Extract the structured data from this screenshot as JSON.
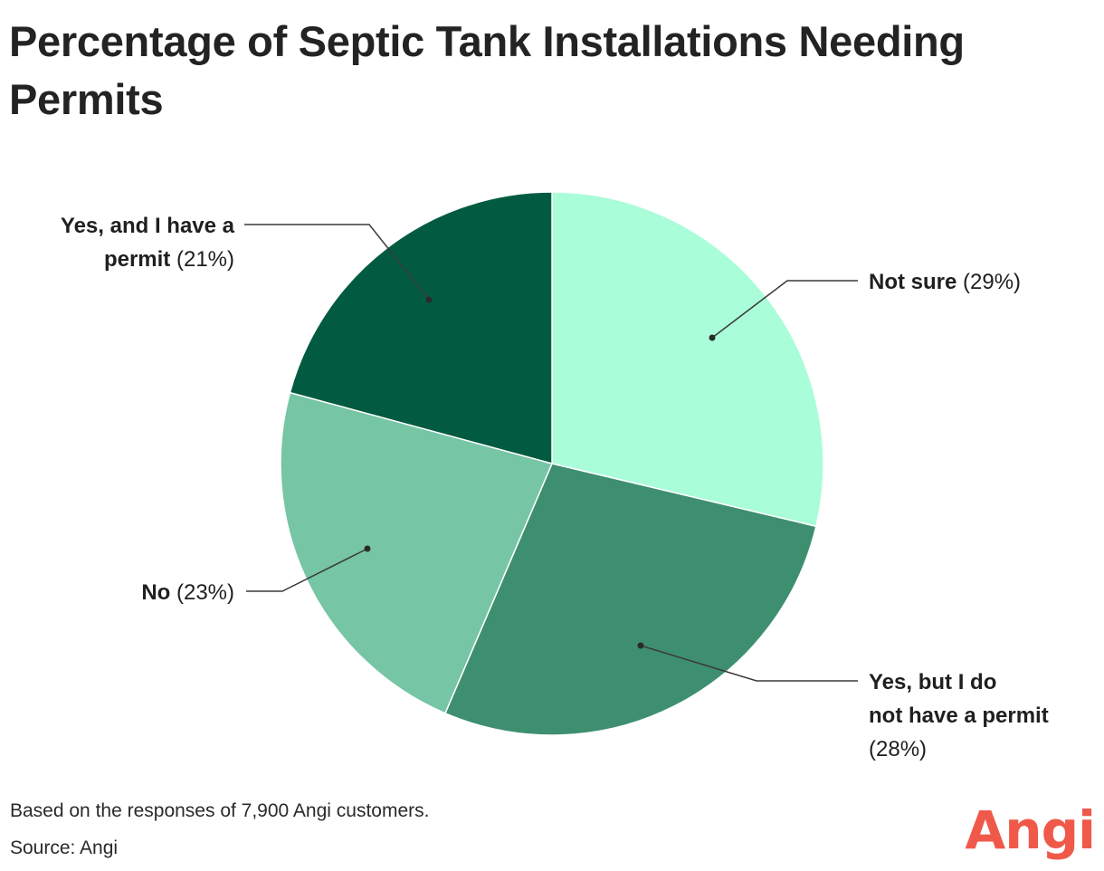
{
  "chart_data": {
    "type": "pie",
    "title": "Percentage of Septic Tank Installations Needing Permits",
    "slices": [
      {
        "label_bold": "Not sure",
        "label_rest": "",
        "pct_text": "(29%)",
        "value": 29,
        "color": "#a9fdd8"
      },
      {
        "label_bold": "Yes, but I do not have a permit",
        "label_rest": "",
        "pct_text": "(28%)",
        "value": 28,
        "color": "#3e8f70"
      },
      {
        "label_bold": "No",
        "label_rest": "",
        "pct_text": "(23%)",
        "value": 23,
        "color": "#76c5a5"
      },
      {
        "label_bold": "Yes, and I have a",
        "label_rest": "permit",
        "pct_text": "(21%)",
        "value": 21,
        "color": "#025b40"
      }
    ]
  },
  "footer": {
    "note": "Based on the responses of 7,900 Angi customers.",
    "source": "Source: Angi",
    "logo": "Angi"
  }
}
